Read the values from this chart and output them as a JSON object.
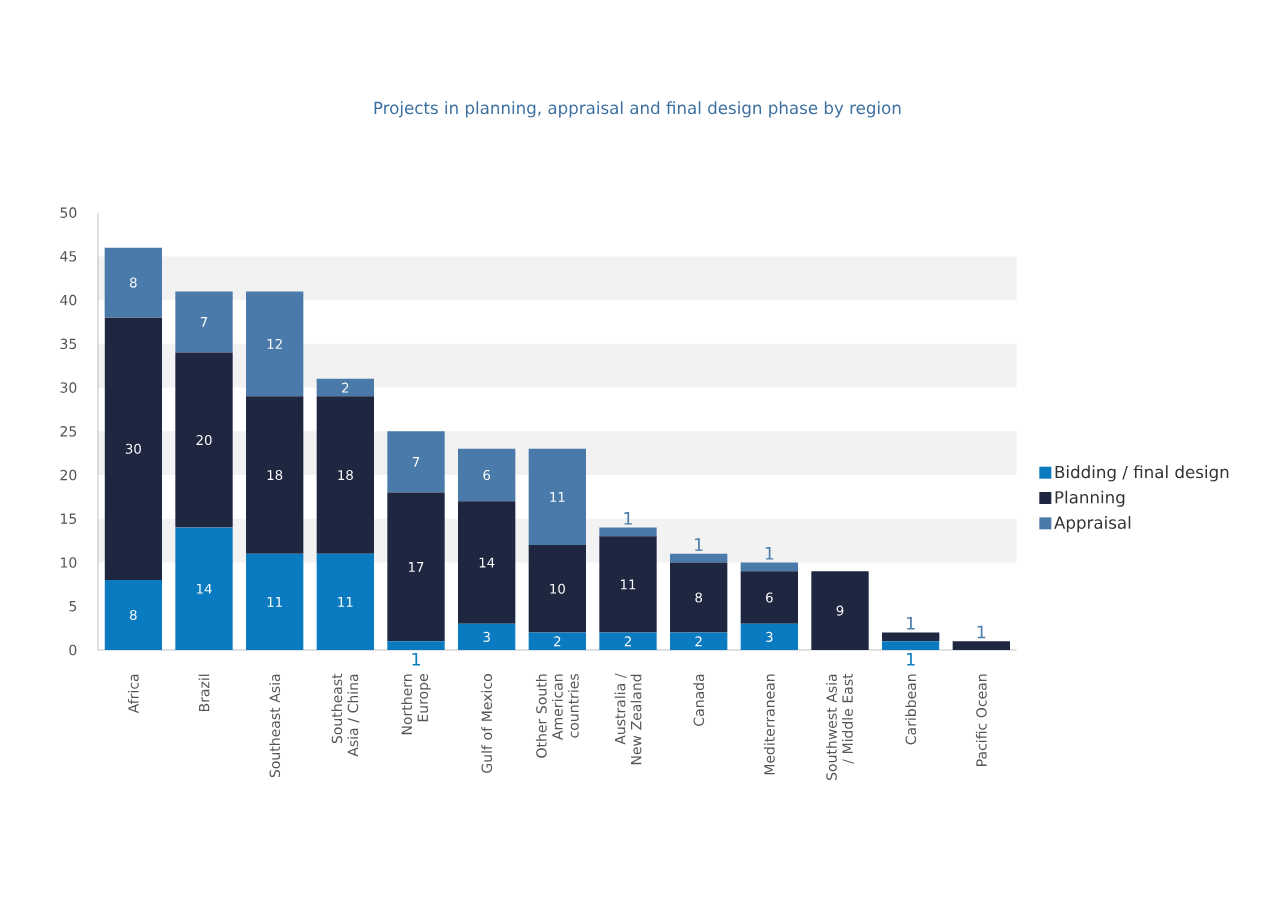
{
  "chart_data": {
    "type": "bar",
    "stacked": true,
    "title": "Projects in planning, appraisal and final design phase by region",
    "categories": [
      "Africa",
      "Brazil",
      "Southeast  Asia",
      "Southeast Asia / China",
      "Northern Europe",
      "Gulf of Mexico",
      "Other South American countries",
      "Australia / New Zealand",
      "Canada",
      "Mediterranean",
      "Southwest  Asia / Middle East",
      "Caribbean",
      "Pacific Ocean"
    ],
    "series": [
      {
        "name": "Bidding / final design",
        "color": "#0a7bc1",
        "values": [
          8,
          14,
          11,
          11,
          1,
          3,
          2,
          2,
          2,
          3,
          0,
          1,
          0
        ],
        "value_labels": [
          "8",
          "14",
          "11",
          "11",
          "1",
          "3",
          "2",
          "2",
          "2",
          "3",
          null,
          "1",
          null
        ]
      },
      {
        "name": "Planning",
        "color": "#1f2640",
        "values": [
          30,
          20,
          18,
          18,
          17,
          14,
          10,
          11,
          8,
          6,
          9,
          1,
          1
        ],
        "value_labels": [
          "30",
          "20",
          "18",
          "18",
          "17",
          "14",
          "10",
          "11",
          "8",
          "6",
          "9",
          "1",
          "1"
        ]
      },
      {
        "name": "Appraisal",
        "color": "#4a7aaa",
        "values": [
          8,
          7,
          12,
          2,
          7,
          6,
          11,
          1,
          1,
          1,
          0,
          0,
          0
        ],
        "value_labels": [
          "8",
          "7",
          "12",
          "2",
          "7",
          "6",
          "11",
          "1",
          "1",
          "1",
          null,
          null,
          null
        ]
      }
    ],
    "ylim": [
      0,
      50
    ],
    "yticks": [
      0,
      5,
      10,
      15,
      20,
      25,
      30,
      35,
      40,
      45,
      50
    ],
    "bands": [
      {
        "axis": "y",
        "from": 10,
        "to": 15,
        "color": "#f2f2f2"
      },
      {
        "axis": "y",
        "from": 20,
        "to": 25,
        "color": "#f2f2f2"
      },
      {
        "axis": "y",
        "from": 30,
        "to": 35,
        "color": "#f2f2f2"
      },
      {
        "axis": "y",
        "from": 40,
        "to": 45,
        "color": "#f2f2f2"
      }
    ],
    "legend": "right"
  }
}
